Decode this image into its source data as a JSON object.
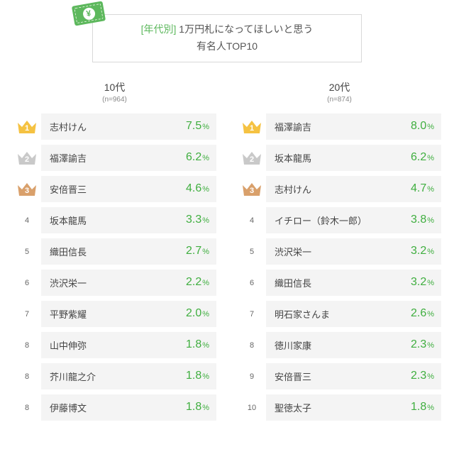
{
  "header": {
    "prefix": "[年代別]",
    "line1_rest": " 1万円札になってほしいと思う",
    "line2": "有名人TOP10",
    "yen": "¥"
  },
  "colors": {
    "accent": "#3fae3f",
    "gold": "#f5c242",
    "silver": "#c9c9c9",
    "bronze": "#d9a06b",
    "row_bg": "#f4f4f4"
  },
  "columns": [
    {
      "title": "10代",
      "sub": "(n=964)",
      "rows": [
        {
          "rank": "1",
          "crown": "gold",
          "name": "志村けん",
          "pct": "7.5",
          "unit": "%"
        },
        {
          "rank": "2",
          "crown": "silver",
          "name": "福澤諭吉",
          "pct": "6.2",
          "unit": "%"
        },
        {
          "rank": "3",
          "crown": "bronze",
          "name": "安倍晋三",
          "pct": "4.6",
          "unit": "%"
        },
        {
          "rank": "4",
          "crown": null,
          "name": "坂本龍馬",
          "pct": "3.3",
          "unit": "%"
        },
        {
          "rank": "5",
          "crown": null,
          "name": "織田信長",
          "pct": "2.7",
          "unit": "%"
        },
        {
          "rank": "6",
          "crown": null,
          "name": "渋沢栄一",
          "pct": "2.2",
          "unit": "%"
        },
        {
          "rank": "7",
          "crown": null,
          "name": "平野紫耀",
          "pct": "2.0",
          "unit": "%"
        },
        {
          "rank": "8",
          "crown": null,
          "name": "山中伸弥",
          "pct": "1.8",
          "unit": "%"
        },
        {
          "rank": "8",
          "crown": null,
          "name": "芥川龍之介",
          "pct": "1.8",
          "unit": "%"
        },
        {
          "rank": "8",
          "crown": null,
          "name": "伊藤博文",
          "pct": "1.8",
          "unit": "%"
        }
      ]
    },
    {
      "title": "20代",
      "sub": "(n=874)",
      "rows": [
        {
          "rank": "1",
          "crown": "gold",
          "name": "福澤諭吉",
          "pct": "8.0",
          "unit": "%"
        },
        {
          "rank": "2",
          "crown": "silver",
          "name": "坂本龍馬",
          "pct": "6.2",
          "unit": "%"
        },
        {
          "rank": "3",
          "crown": "bronze",
          "name": "志村けん",
          "pct": "4.7",
          "unit": "%"
        },
        {
          "rank": "4",
          "crown": null,
          "name": "イチロー（鈴木一郎）",
          "pct": "3.8",
          "unit": "%"
        },
        {
          "rank": "5",
          "crown": null,
          "name": "渋沢栄一",
          "pct": "3.2",
          "unit": "%"
        },
        {
          "rank": "6",
          "crown": null,
          "name": "織田信長",
          "pct": "3.2",
          "unit": "%"
        },
        {
          "rank": "7",
          "crown": null,
          "name": "明石家さんま",
          "pct": "2.6",
          "unit": "%"
        },
        {
          "rank": "8",
          "crown": null,
          "name": "徳川家康",
          "pct": "2.3",
          "unit": "%"
        },
        {
          "rank": "9",
          "crown": null,
          "name": "安倍晋三",
          "pct": "2.3",
          "unit": "%"
        },
        {
          "rank": "10",
          "crown": null,
          "name": "聖徳太子",
          "pct": "1.8",
          "unit": "%"
        }
      ]
    }
  ]
}
